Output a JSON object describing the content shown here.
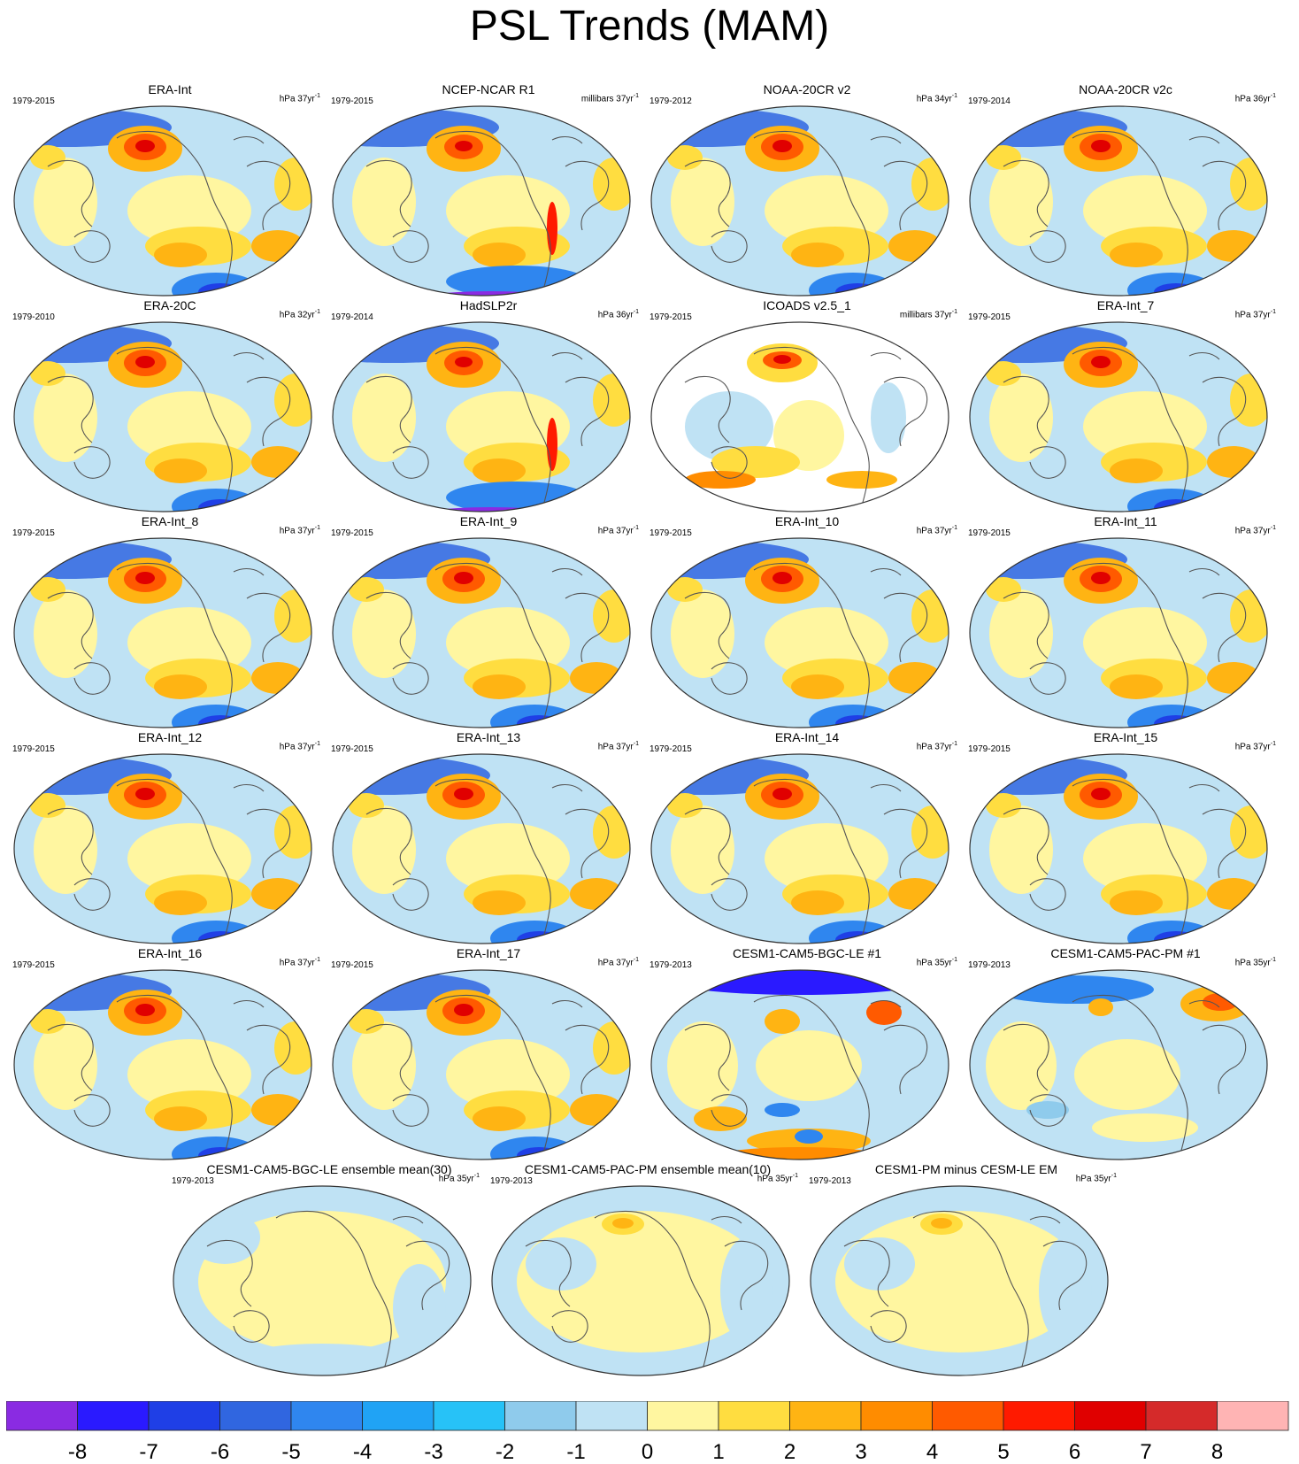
{
  "title": "PSL Trends (MAM)",
  "panels": [
    {
      "title": "ERA-Int",
      "period": "1979-2015",
      "units_prefix": "hPa 37yr",
      "units_exp": "-1",
      "style": "era"
    },
    {
      "title": "NCEP-NCAR R1",
      "period": "1979-2015",
      "units_prefix": "millibars 37yr",
      "units_exp": "-1",
      "style": "ncep"
    },
    {
      "title": "NOAA-20CR v2",
      "period": "1979-2012",
      "units_prefix": "hPa 34yr",
      "units_exp": "-1",
      "style": "era"
    },
    {
      "title": "NOAA-20CR v2c",
      "period": "1979-2014",
      "units_prefix": "hPa 36yr",
      "units_exp": "-1",
      "style": "era"
    },
    {
      "title": "ERA-20C",
      "period": "1979-2010",
      "units_prefix": "hPa 32yr",
      "units_exp": "-1",
      "style": "era"
    },
    {
      "title": "HadSLP2r",
      "period": "1979-2014",
      "units_prefix": "hPa 36yr",
      "units_exp": "-1",
      "style": "ncep"
    },
    {
      "title": "ICOADS v2.5_1",
      "period": "1979-2015",
      "units_prefix": "millibars 37yr",
      "units_exp": "-1",
      "style": "icoads"
    },
    {
      "title": "ERA-Int_7",
      "period": "1979-2015",
      "units_prefix": "hPa 37yr",
      "units_exp": "-1",
      "style": "era"
    },
    {
      "title": "ERA-Int_8",
      "period": "1979-2015",
      "units_prefix": "hPa 37yr",
      "units_exp": "-1",
      "style": "era"
    },
    {
      "title": "ERA-Int_9",
      "period": "1979-2015",
      "units_prefix": "hPa 37yr",
      "units_exp": "-1",
      "style": "era"
    },
    {
      "title": "ERA-Int_10",
      "period": "1979-2015",
      "units_prefix": "hPa 37yr",
      "units_exp": "-1",
      "style": "era"
    },
    {
      "title": "ERA-Int_11",
      "period": "1979-2015",
      "units_prefix": "hPa 37yr",
      "units_exp": "-1",
      "style": "era"
    },
    {
      "title": "ERA-Int_12",
      "period": "1979-2015",
      "units_prefix": "hPa 37yr",
      "units_exp": "-1",
      "style": "era"
    },
    {
      "title": "ERA-Int_13",
      "period": "1979-2015",
      "units_prefix": "hPa 37yr",
      "units_exp": "-1",
      "style": "era"
    },
    {
      "title": "ERA-Int_14",
      "period": "1979-2015",
      "units_prefix": "hPa 37yr",
      "units_exp": "-1",
      "style": "era"
    },
    {
      "title": "ERA-Int_15",
      "period": "1979-2015",
      "units_prefix": "hPa 37yr",
      "units_exp": "-1",
      "style": "era"
    },
    {
      "title": "ERA-Int_16",
      "period": "1979-2015",
      "units_prefix": "hPa 37yr",
      "units_exp": "-1",
      "style": "era"
    },
    {
      "title": "ERA-Int_17",
      "period": "1979-2015",
      "units_prefix": "hPa 37yr",
      "units_exp": "-1",
      "style": "era"
    },
    {
      "title": "CESM1-CAM5-BGC-LE #1",
      "period": "1979-2013",
      "units_prefix": "hPa 35yr",
      "units_exp": "-1",
      "style": "bgc"
    },
    {
      "title": "CESM1-CAM5-PAC-PM #1",
      "period": "1979-2013",
      "units_prefix": "hPa 35yr",
      "units_exp": "-1",
      "style": "pac"
    },
    {
      "title": "CESM1-CAM5-BGC-LE ensemble mean(30)",
      "period": "1979-2013",
      "units_prefix": "hPa 35yr",
      "units_exp": "-1",
      "style": "mean"
    },
    {
      "title": "CESM1-CAM5-PAC-PM ensemble mean(10)",
      "period": "1979-2013",
      "units_prefix": "hPa 35yr",
      "units_exp": "-1",
      "style": "meanpm"
    },
    {
      "title": "CESM1-PM minus CESM-LE EM",
      "period": "1979-2013",
      "units_prefix": "hPa 35yr",
      "units_exp": "-1",
      "style": "meanpm"
    }
  ],
  "colorbar": {
    "colors": [
      "#8a2be2",
      "#2a1aff",
      "#1f3fe6",
      "#3066e0",
      "#2f86ef",
      "#20a3f5",
      "#27c2f7",
      "#8fcbec",
      "#bfe2f4",
      "#fff6a0",
      "#ffdd40",
      "#ffb413",
      "#ff8c00",
      "#ff5a00",
      "#ff1a00",
      "#e00000",
      "#d52a2a",
      "#ffb4b4"
    ],
    "labels": [
      "-8",
      "-7",
      "-6",
      "-5",
      "-4",
      "-3",
      "-2",
      "-1",
      "0",
      "1",
      "2",
      "3",
      "4",
      "5",
      "6",
      "7",
      "8"
    ]
  }
}
